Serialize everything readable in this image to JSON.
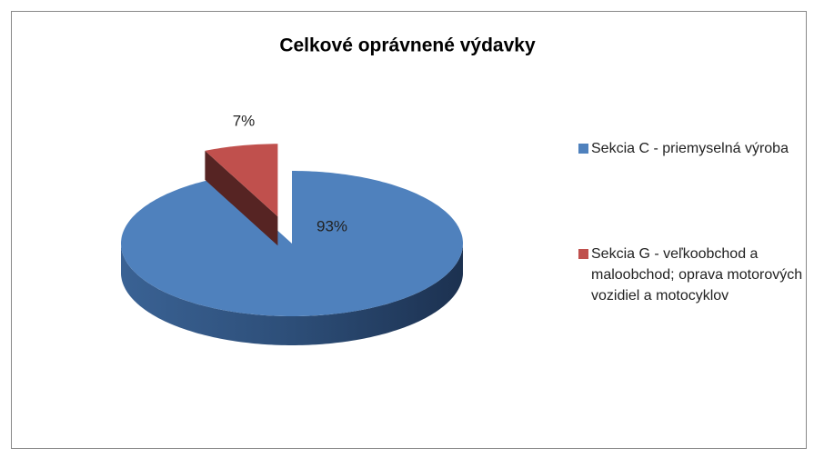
{
  "chart_data": {
    "type": "pie",
    "title": "Celkové oprávnené výdavky",
    "categories": [
      "Sekcia C - priemyselná výroba",
      "Sekcia G - veľkoobchod a maloobchod; oprava motorových vozidiel a motocyklov"
    ],
    "values": [
      93,
      7
    ],
    "value_labels": [
      "93%",
      "7%"
    ],
    "colors": [
      "#4f81bd",
      "#c0504d"
    ],
    "legend": "right"
  }
}
